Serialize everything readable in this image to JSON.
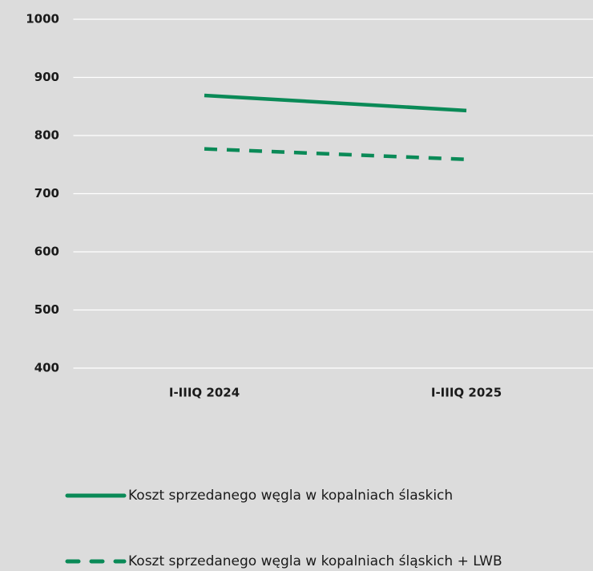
{
  "chart_data": {
    "type": "line",
    "categories": [
      "I-IIIQ 2024",
      "I-IIIQ 2025"
    ],
    "series": [
      {
        "name": "Koszt sprzedanego węgla w kopalniach ślaskich",
        "color": "#0a8a57",
        "line_style": "solid",
        "values": [
          869,
          843
        ]
      },
      {
        "name": "Koszt sprzedanego węgla w kopalniach śląskich + LWB",
        "color": "#0a8a57",
        "line_style": "dashed",
        "values": [
          777,
          759
        ]
      }
    ],
    "ylim": [
      400,
      1000
    ],
    "yticks": [
      400,
      500,
      600,
      700,
      800,
      900,
      1000
    ],
    "grid": true
  }
}
